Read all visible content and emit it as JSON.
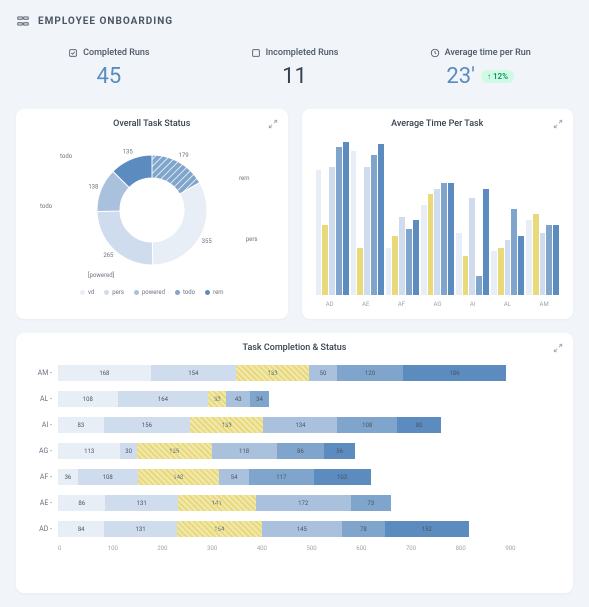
{
  "header": {
    "title": "EMPLOYEE ONBOARDING"
  },
  "stats": [
    {
      "label": "Completed Runs",
      "value": "45",
      "color": "#5b8bbf"
    },
    {
      "label": "Incompleted Runs",
      "value": "11",
      "color": "#374151"
    },
    {
      "label": "Average time per Run",
      "value": "23'",
      "color": "#5b8bbf",
      "badge": "↑ 12%"
    }
  ],
  "colors": {
    "c1": "#e8eef6",
    "c2": "#cfdced",
    "c3": "#a9c1dd",
    "c4": "#7fa5cc",
    "c5": "#5b8bbf",
    "y1": "#e8d97a",
    "y2": "#d4c968"
  },
  "donut": {
    "title": "Overall Task Status",
    "slices": [
      {
        "value": 179,
        "color": "#7fa5cc",
        "hatch": true
      },
      {
        "value": 355,
        "color": "#e8eef6"
      },
      {
        "value": 265,
        "color": "#cfdced"
      },
      {
        "value": 138,
        "color": "#a9c1dd"
      },
      {
        "value": 135,
        "color": "#5b8bbf"
      }
    ],
    "labels": [
      "todo",
      "rem",
      "pers",
      "todo",
      "[powered]"
    ],
    "legend": [
      {
        "name": "vd",
        "color": "#e8eef6"
      },
      {
        "name": "pers",
        "color": "#cfdced"
      },
      {
        "name": "powered",
        "color": "#a9c1dd"
      },
      {
        "name": "todo",
        "color": "#7fa5cc"
      },
      {
        "name": "rem",
        "color": "#5b8bbf"
      }
    ]
  },
  "barChart": {
    "title": "Average Time Per Task",
    "categories": [
      "AD",
      "AE",
      "AF",
      "AG",
      "AI",
      "AL",
      "AM"
    ],
    "series_colors": [
      "#e8eef6",
      "#e8d97a",
      "#cfdced",
      "#7fa5cc",
      "#5b8bbf"
    ],
    "data": [
      [
        80,
        45,
        82,
        95,
        98
      ],
      [
        92,
        30,
        82,
        90,
        97
      ],
      [
        30,
        38,
        50,
        42,
        48
      ],
      [
        58,
        65,
        68,
        72,
        72
      ],
      [
        40,
        25,
        62,
        12,
        68
      ],
      [
        28,
        30,
        35,
        55,
        38
      ],
      [
        48,
        52,
        40,
        45,
        45
      ]
    ]
  },
  "hbar": {
    "title": "Task Completion & Status",
    "max": 900,
    "xticks": [
      "0",
      "100",
      "200",
      "300",
      "400",
      "500",
      "600",
      "700",
      "800",
      "900"
    ],
    "rows": [
      {
        "label": "AM",
        "segs": [
          168,
          154,
          133,
          50,
          120,
          186
        ]
      },
      {
        "label": "AL",
        "segs": [
          108,
          164,
          33,
          43,
          34,
          0
        ]
      },
      {
        "label": "AI",
        "segs": [
          83,
          156,
          133,
          134,
          108,
          80
        ]
      },
      {
        "label": "AG",
        "segs": [
          113,
          30,
          135,
          118,
          86,
          56
        ]
      },
      {
        "label": "AF",
        "segs": [
          36,
          108,
          148,
          54,
          117,
          103
        ]
      },
      {
        "label": "AE",
        "segs": [
          86,
          131,
          141,
          172,
          73,
          0
        ]
      },
      {
        "label": "AD",
        "segs": [
          84,
          131,
          154,
          145,
          78,
          152
        ]
      }
    ],
    "seg_colors": [
      "#e8eef6",
      "#cfdced",
      "#e8d97a",
      "#a9c1dd",
      "#7fa5cc",
      "#5b8bbf"
    ],
    "seg_hatch": [
      false,
      false,
      true,
      false,
      false,
      false
    ]
  }
}
